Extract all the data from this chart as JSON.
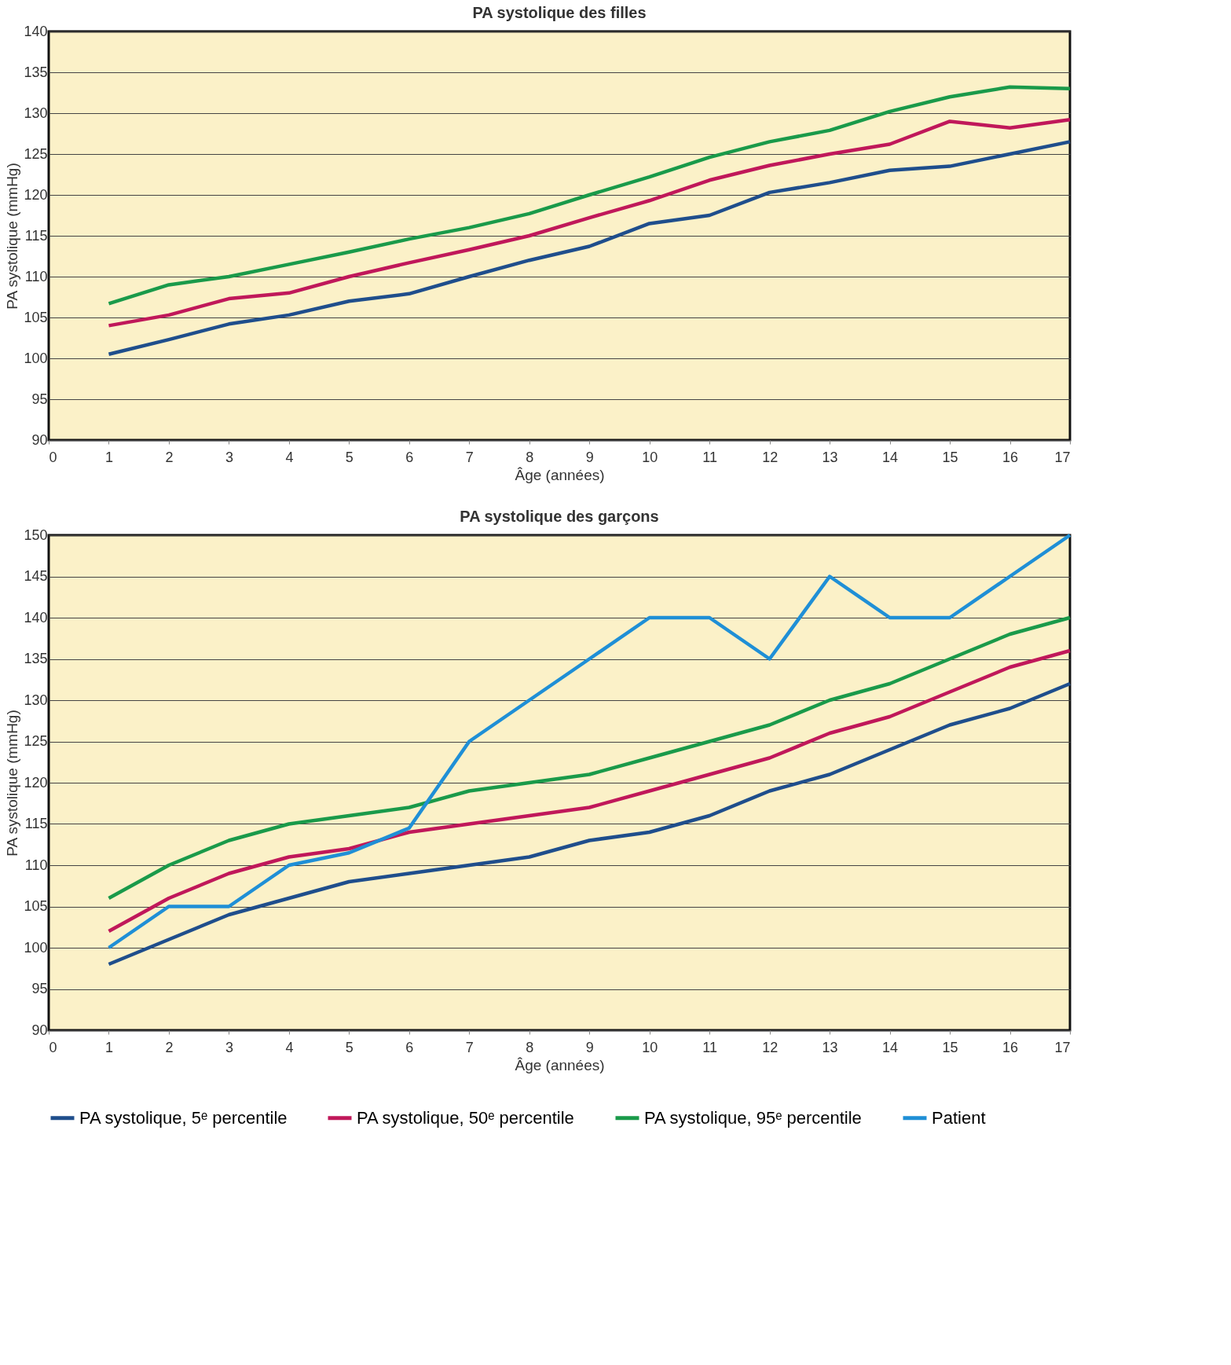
{
  "chart_data": [
    {
      "type": "line",
      "title": "PA systolique des filles",
      "xlabel": "Âge (années)",
      "ylabel": "PA systolique (mmHg)",
      "xlim": [
        0,
        17
      ],
      "xticks": [
        0,
        1,
        2,
        3,
        4,
        5,
        6,
        7,
        8,
        9,
        10,
        11,
        12,
        13,
        14,
        15,
        16,
        17
      ],
      "ylim": [
        90,
        140
      ],
      "yticks": [
        90,
        95,
        100,
        105,
        110,
        115,
        120,
        125,
        130,
        135,
        140
      ],
      "grid": "y",
      "legend": false,
      "line_style": "solid",
      "marker": "none",
      "x": [
        1,
        2,
        3,
        4,
        5,
        6,
        7,
        8,
        9,
        10,
        11,
        12,
        13,
        14,
        15,
        16,
        17
      ],
      "series": [
        {
          "color": "#1f4e8c",
          "values": [
            100.5,
            102.3,
            104.2,
            105.3,
            107,
            107.9,
            110,
            112,
            113.7,
            116.5,
            117.5,
            120.3,
            121.5,
            123,
            123.5,
            125,
            126.5
          ]
        },
        {
          "color": "#c0185a",
          "values": [
            104,
            105.3,
            107.3,
            108,
            110,
            111.7,
            113.3,
            115,
            117.2,
            119.3,
            121.8,
            123.6,
            125,
            126.2,
            129,
            128.2,
            129.2
          ]
        },
        {
          "color": "#1a9a4a",
          "values": [
            106.7,
            109,
            110,
            111.5,
            113,
            114.6,
            116,
            117.7,
            120,
            122.2,
            124.6,
            126.5,
            127.9,
            130.2,
            132,
            133.2,
            133
          ]
        }
      ]
    },
    {
      "type": "line",
      "title": "PA systolique des garçons",
      "xlabel": "Âge (années)",
      "ylabel": "PA systolique (mmHg)",
      "xlim": [
        0,
        17
      ],
      "xticks": [
        0,
        1,
        2,
        3,
        4,
        5,
        6,
        7,
        8,
        9,
        10,
        11,
        12,
        13,
        14,
        15,
        16,
        17
      ],
      "ylim": [
        90,
        150
      ],
      "yticks": [
        90,
        95,
        100,
        105,
        110,
        115,
        120,
        125,
        130,
        135,
        140,
        145,
        150
      ],
      "grid": "y",
      "legend": "bottom",
      "line_style": "solid",
      "marker": "none",
      "x": [
        1,
        2,
        3,
        4,
        5,
        6,
        7,
        8,
        9,
        10,
        11,
        12,
        13,
        14,
        15,
        16,
        17
      ],
      "series": [
        {
          "name": "PA systolique, 5ᵉ percentile",
          "color": "#1f4e8c",
          "values": [
            98,
            101,
            104,
            106,
            108,
            109,
            110,
            111,
            113,
            114,
            116,
            119,
            121,
            124,
            127,
            129,
            132
          ]
        },
        {
          "name": "PA systolique, 50ᵉ percentile",
          "color": "#c0185a",
          "values": [
            102,
            106,
            109,
            111,
            112,
            114,
            115,
            116,
            117,
            119,
            121,
            123,
            126,
            128,
            131,
            134,
            136
          ]
        },
        {
          "name": "PA systolique, 95ᵉ percentile",
          "color": "#1a9a4a",
          "values": [
            106,
            110,
            113,
            115,
            116,
            117,
            119,
            120,
            121,
            123,
            125,
            127,
            130,
            132,
            135,
            138,
            140
          ]
        },
        {
          "name": "Patient",
          "color": "#1f8fd6",
          "values": [
            100,
            105,
            105,
            110,
            111.5,
            114.5,
            125,
            130,
            135,
            140,
            140,
            135,
            145,
            140,
            140,
            145,
            150
          ]
        }
      ]
    }
  ]
}
